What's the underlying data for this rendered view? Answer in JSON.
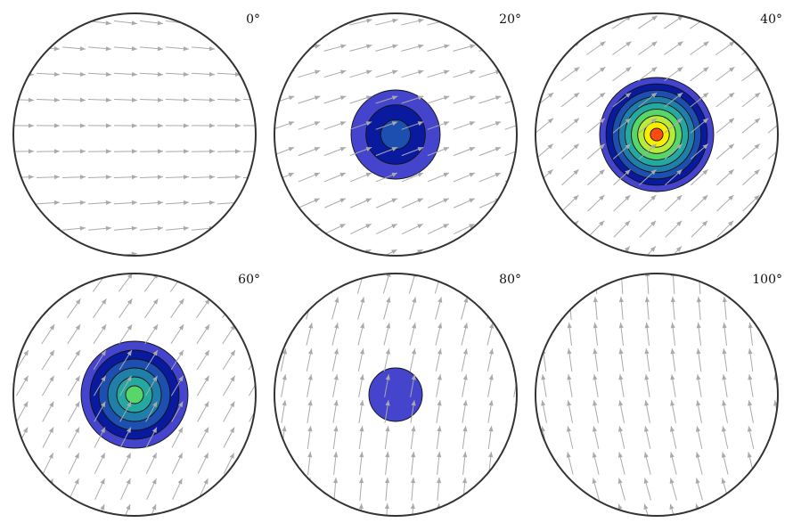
{
  "figure": {
    "panels": [
      {
        "label": "0°",
        "angle_deg": 0,
        "contour_levels": 0
      },
      {
        "label": "20°",
        "angle_deg": 20,
        "contour_levels": 3
      },
      {
        "label": "40°",
        "angle_deg": 40,
        "contour_levels": 9
      },
      {
        "label": "60°",
        "angle_deg": 60,
        "contour_levels": 6
      },
      {
        "label": "80°",
        "angle_deg": 80,
        "contour_levels": 1
      },
      {
        "label": "100°",
        "angle_deg": 100,
        "contour_levels": 0
      }
    ],
    "contour_colors": [
      "#4444cc",
      "#0a1a9e",
      "#1c4fb0",
      "#1f7fa8",
      "#25a8a0",
      "#58d66a",
      "#b8ec3a",
      "#f4f000",
      "#ff4a10"
    ],
    "arrow_color": "#aaaaaa",
    "circle_color": "#333333"
  }
}
